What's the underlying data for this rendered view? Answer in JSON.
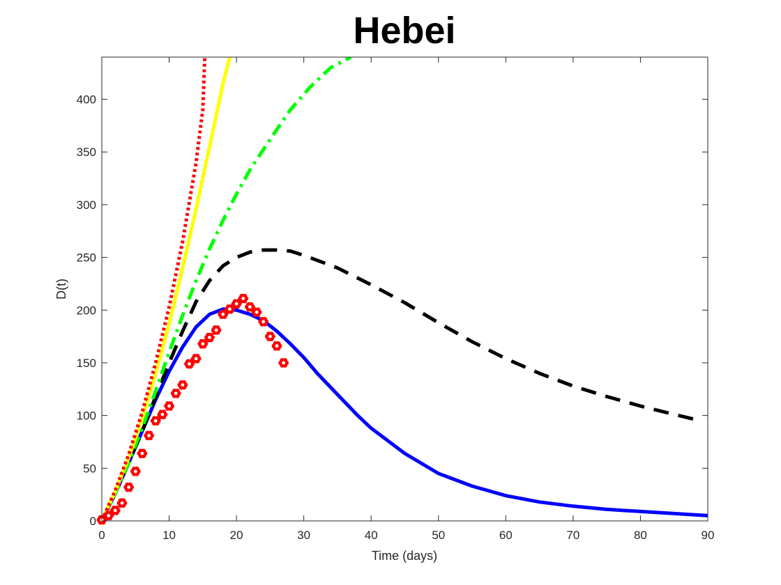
{
  "chart_data": {
    "type": "line",
    "title": "Hebei",
    "xlabel": "Time (days)",
    "ylabel": "D(t)",
    "xlim": [
      0,
      90
    ],
    "ylim": [
      0,
      440
    ],
    "xticks": [
      0,
      10,
      20,
      30,
      40,
      50,
      60,
      70,
      80,
      90
    ],
    "yticks": [
      0,
      50,
      100,
      150,
      200,
      250,
      300,
      350,
      400
    ],
    "grid": false,
    "series": [
      {
        "color": "#0000ff",
        "style": "solid",
        "points": [
          [
            0,
            0
          ],
          [
            2,
            26
          ],
          [
            4,
            55
          ],
          [
            6,
            85
          ],
          [
            8,
            115
          ],
          [
            10,
            142
          ],
          [
            12,
            165
          ],
          [
            14,
            184
          ],
          [
            16,
            196
          ],
          [
            18,
            201
          ],
          [
            20,
            200
          ],
          [
            22,
            196
          ],
          [
            24,
            190
          ],
          [
            26,
            180
          ],
          [
            28,
            168
          ],
          [
            30,
            155
          ],
          [
            32,
            140
          ],
          [
            35,
            120
          ],
          [
            38,
            100
          ],
          [
            40,
            88
          ],
          [
            45,
            64
          ],
          [
            50,
            45
          ],
          [
            55,
            33
          ],
          [
            60,
            24
          ],
          [
            65,
            18
          ],
          [
            70,
            14
          ],
          [
            75,
            11
          ],
          [
            80,
            9
          ],
          [
            85,
            7
          ],
          [
            90,
            5
          ]
        ]
      },
      {
        "color": "#000000",
        "style": "dashed",
        "points": [
          [
            0,
            0
          ],
          [
            2,
            26
          ],
          [
            4,
            55
          ],
          [
            6,
            85
          ],
          [
            8,
            118
          ],
          [
            10,
            150
          ],
          [
            12,
            180
          ],
          [
            14,
            208
          ],
          [
            16,
            228
          ],
          [
            18,
            242
          ],
          [
            20,
            250
          ],
          [
            22,
            255
          ],
          [
            24,
            257
          ],
          [
            26,
            257
          ],
          [
            28,
            256
          ],
          [
            30,
            252
          ],
          [
            35,
            240
          ],
          [
            40,
            224
          ],
          [
            45,
            207
          ],
          [
            50,
            188
          ],
          [
            55,
            170
          ],
          [
            60,
            154
          ],
          [
            65,
            140
          ],
          [
            70,
            128
          ],
          [
            75,
            118
          ],
          [
            80,
            109
          ],
          [
            85,
            101
          ],
          [
            89,
            95
          ]
        ]
      },
      {
        "color": "#00ff00",
        "style": "dashdot",
        "points": [
          [
            0,
            0
          ],
          [
            2,
            26
          ],
          [
            4,
            55
          ],
          [
            6,
            88
          ],
          [
            8,
            123
          ],
          [
            10,
            160
          ],
          [
            12,
            195
          ],
          [
            14,
            228
          ],
          [
            16,
            258
          ],
          [
            18,
            285
          ],
          [
            20,
            310
          ],
          [
            22,
            333
          ],
          [
            25,
            362
          ],
          [
            28,
            390
          ],
          [
            31,
            412
          ],
          [
            34,
            430
          ],
          [
            37,
            440
          ]
        ]
      },
      {
        "color": "#ffff00",
        "style": "solid",
        "points": [
          [
            0,
            0
          ],
          [
            2,
            28
          ],
          [
            4,
            60
          ],
          [
            6,
            97
          ],
          [
            8,
            140
          ],
          [
            10,
            187
          ],
          [
            12,
            240
          ],
          [
            14,
            296
          ],
          [
            16,
            355
          ],
          [
            18,
            415
          ],
          [
            19,
            440
          ]
        ]
      },
      {
        "color": "#ff0000",
        "style": "dotted",
        "points": [
          [
            0,
            0
          ],
          [
            2,
            29
          ],
          [
            4,
            63
          ],
          [
            6,
            103
          ],
          [
            8,
            150
          ],
          [
            10,
            203
          ],
          [
            12,
            265
          ],
          [
            14,
            340
          ],
          [
            15,
            390
          ],
          [
            15.3,
            440
          ]
        ]
      }
    ],
    "scatter": {
      "color": "#ff0000",
      "marker": "flower",
      "points": [
        [
          0,
          1
        ],
        [
          1,
          5
        ],
        [
          2,
          10
        ],
        [
          3,
          17
        ],
        [
          4,
          32
        ],
        [
          5,
          47
        ],
        [
          6,
          64
        ],
        [
          7,
          81
        ],
        [
          8,
          95
        ],
        [
          9,
          101
        ],
        [
          10,
          109
        ],
        [
          11,
          121
        ],
        [
          12,
          129
        ],
        [
          13,
          149
        ],
        [
          14,
          154
        ],
        [
          15,
          168
        ],
        [
          16,
          174
        ],
        [
          17,
          181
        ],
        [
          18,
          196
        ],
        [
          19,
          201
        ],
        [
          20,
          206
        ],
        [
          21,
          211
        ],
        [
          22,
          203
        ],
        [
          23,
          198
        ],
        [
          24,
          189
        ],
        [
          25,
          175
        ],
        [
          26,
          166
        ],
        [
          27,
          150
        ]
      ]
    }
  }
}
